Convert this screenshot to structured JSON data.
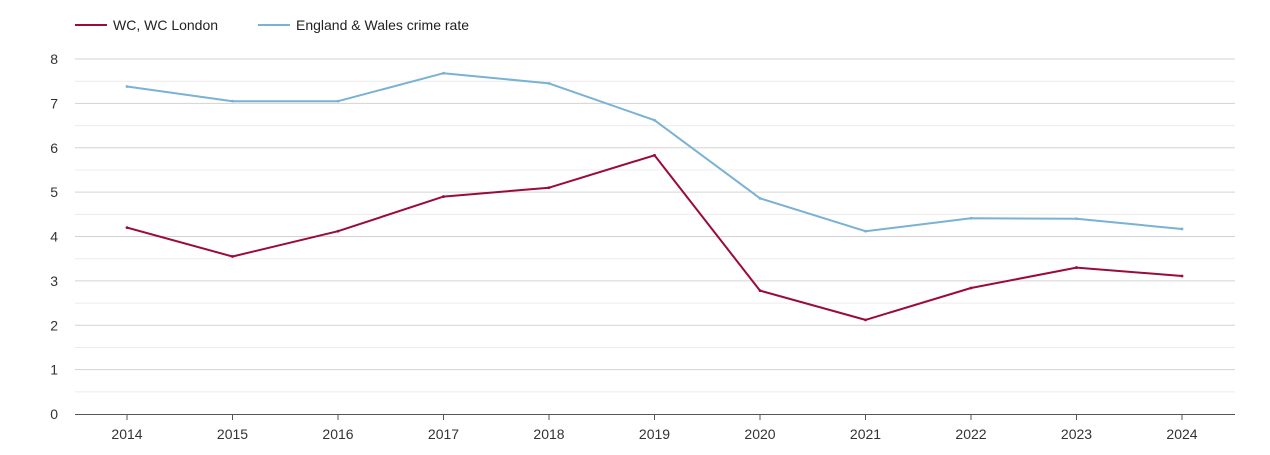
{
  "chart_data": {
    "type": "line",
    "x": [
      "2014",
      "2015",
      "2016",
      "2017",
      "2018",
      "2019",
      "2020",
      "2021",
      "2022",
      "2023",
      "2024"
    ],
    "series": [
      {
        "name": "WC, WC London",
        "color": "#9b0a3c",
        "values": [
          4.2,
          3.55,
          4.12,
          4.9,
          5.1,
          5.83,
          2.78,
          2.12,
          2.84,
          3.3,
          3.11
        ]
      },
      {
        "name": "England & Wales crime rate",
        "color": "#79b2d4",
        "values": [
          7.38,
          7.05,
          7.05,
          7.68,
          7.45,
          6.62,
          4.86,
          4.12,
          4.41,
          4.4,
          4.17
        ]
      }
    ],
    "y_ticks": [
      "0",
      "1",
      "2",
      "3",
      "4",
      "5",
      "6",
      "7",
      "8"
    ],
    "ylim": [
      0,
      8
    ],
    "grid": true,
    "minor_grid": true,
    "legend_position": "top-left"
  }
}
